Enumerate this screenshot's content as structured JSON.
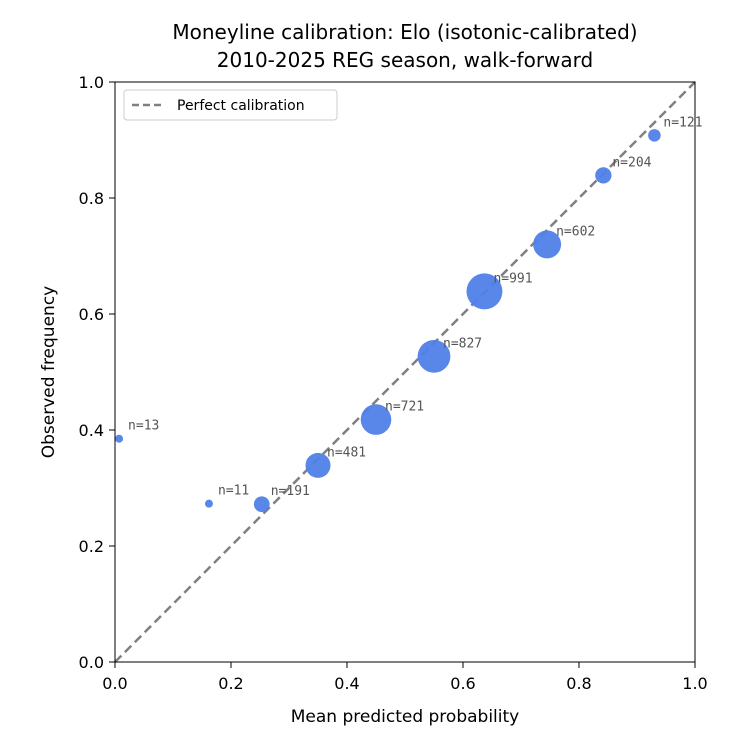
{
  "chart_data": {
    "type": "scatter",
    "title": "Moneyline calibration: Elo (isotonic-calibrated)",
    "subtitle": "2010-2025 REG season, walk-forward",
    "xlabel": "Mean predicted probability",
    "ylabel": "Observed frequency",
    "xlim": [
      0.0,
      1.0
    ],
    "ylim": [
      0.0,
      1.0
    ],
    "xticks": [
      "0.0",
      "0.2",
      "0.4",
      "0.6",
      "0.8",
      "1.0"
    ],
    "yticks": [
      "0.0",
      "0.2",
      "0.4",
      "0.6",
      "0.8",
      "1.0"
    ],
    "grid": false,
    "legend": {
      "position": "top-left",
      "entries": [
        "Perfect calibration"
      ]
    },
    "reference_line": {
      "name": "Perfect calibration",
      "from": [
        0,
        0
      ],
      "to": [
        1,
        1
      ],
      "style": "dashed",
      "color": "#808080"
    },
    "point_color": "#4f7fe8",
    "points": [
      {
        "x": 0.007,
        "y": 0.385,
        "n": 13,
        "label": "n=13"
      },
      {
        "x": 0.162,
        "y": 0.273,
        "n": 11,
        "label": "n=11"
      },
      {
        "x": 0.253,
        "y": 0.272,
        "n": 191,
        "label": "n=191"
      },
      {
        "x": 0.35,
        "y": 0.339,
        "n": 481,
        "label": "n=481"
      },
      {
        "x": 0.45,
        "y": 0.418,
        "n": 721,
        "label": "n=721"
      },
      {
        "x": 0.55,
        "y": 0.527,
        "n": 827,
        "label": "n=827"
      },
      {
        "x": 0.637,
        "y": 0.639,
        "n": 991,
        "label": "n=991"
      },
      {
        "x": 0.745,
        "y": 0.72,
        "n": 602,
        "label": "n=602"
      },
      {
        "x": 0.842,
        "y": 0.839,
        "n": 204,
        "label": "n=204"
      },
      {
        "x": 0.93,
        "y": 0.908,
        "n": 121,
        "label": "n=121"
      }
    ]
  }
}
